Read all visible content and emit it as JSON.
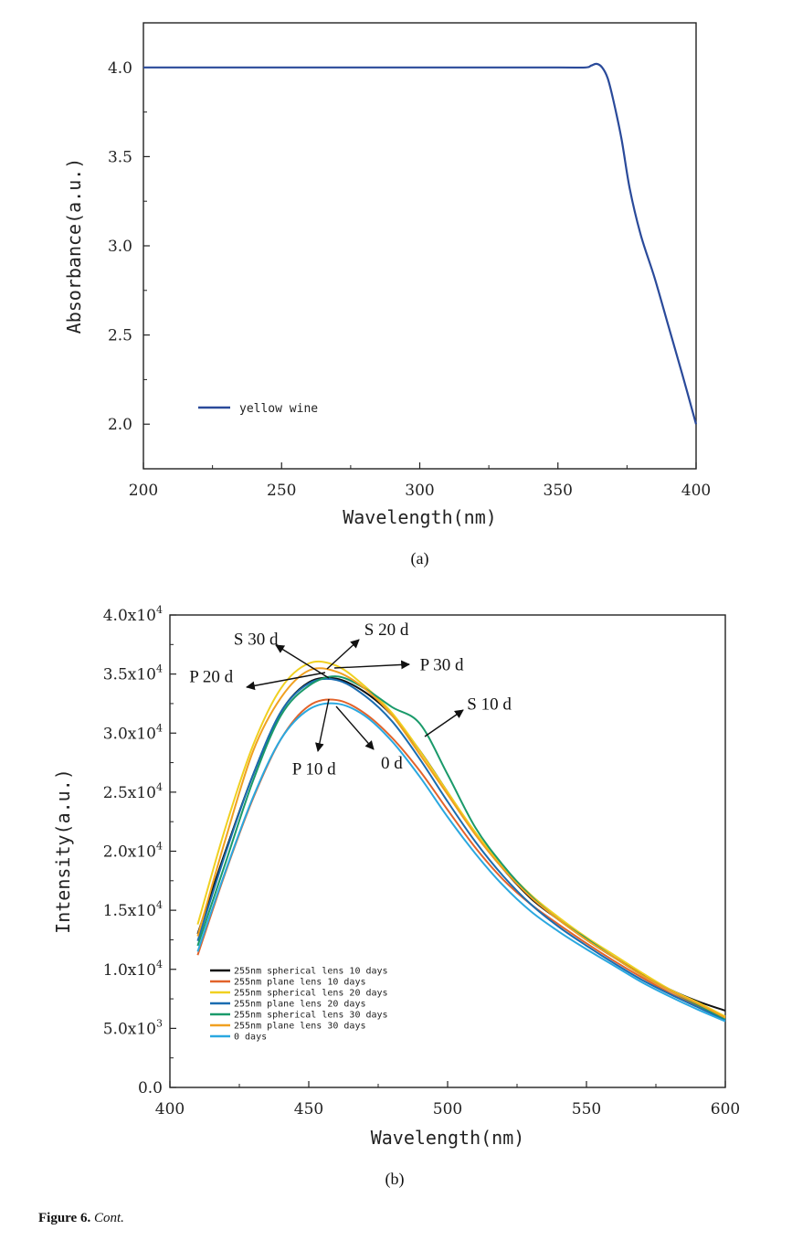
{
  "chart_data": [
    {
      "type": "line",
      "panel_label": "(a)",
      "xlabel": "Wavelength(nm)",
      "ylabel": "Absorbance(a.u.)",
      "xlim": [
        200,
        400
      ],
      "ylim": [
        1.75,
        4.25
      ],
      "xticks": [
        200,
        250,
        300,
        350,
        400
      ],
      "yticks": [
        2.0,
        2.5,
        3.0,
        3.5,
        4.0
      ],
      "ytick_labels": [
        "2.0",
        "2.5",
        "3.0",
        "3.5",
        "4.0"
      ],
      "legend_position": "bottom-left",
      "series": [
        {
          "name": "yellow wine",
          "color": "#2a4a9a",
          "x": [
            200,
            250,
            300,
            350,
            360,
            362,
            364,
            366,
            368,
            370,
            373,
            376,
            380,
            385,
            390,
            395,
            400
          ],
          "y": [
            4.0,
            4.0,
            4.0,
            4.0,
            4.0,
            4.01,
            4.02,
            4.0,
            3.94,
            3.82,
            3.6,
            3.32,
            3.06,
            2.82,
            2.55,
            2.28,
            2.0
          ]
        }
      ]
    },
    {
      "type": "line",
      "panel_label": "(b)",
      "xlabel": "Wavelength(nm)",
      "ylabel": "Intensity(a.u.)",
      "xlim": [
        400,
        600
      ],
      "ylim": [
        0,
        40000
      ],
      "xticks": [
        400,
        450,
        500,
        550,
        600
      ],
      "yticks": [
        0,
        5000,
        10000,
        15000,
        20000,
        25000,
        30000,
        35000,
        40000
      ],
      "ytick_labels": [
        {
          "main": "0.0",
          "sup": ""
        },
        {
          "main": "5.0x10",
          "sup": "3"
        },
        {
          "main": "1.0x10",
          "sup": "4"
        },
        {
          "main": "1.5x10",
          "sup": "4"
        },
        {
          "main": "2.0x10",
          "sup": "4"
        },
        {
          "main": "2.5x10",
          "sup": "4"
        },
        {
          "main": "3.0x10",
          "sup": "4"
        },
        {
          "main": "3.5x10",
          "sup": "4"
        },
        {
          "main": "4.0x10",
          "sup": "4"
        }
      ],
      "legend_position": "bottom-left",
      "x": [
        410,
        420,
        430,
        440,
        450,
        460,
        470,
        480,
        490,
        500,
        510,
        520,
        530,
        540,
        550,
        560,
        570,
        580,
        590,
        600
      ],
      "series": [
        {
          "name": "255nm spherical lens 10 days",
          "color": "#111111",
          "values": [
            13000,
            20000,
            26500,
            31800,
            34300,
            34600,
            33500,
            31500,
            28500,
            25000,
            21500,
            18500,
            16000,
            14200,
            12500,
            11000,
            9600,
            8300,
            7300,
            6500
          ]
        },
        {
          "name": "255nm plane lens 10 days",
          "color": "#e2632b",
          "values": [
            11200,
            18200,
            24500,
            29500,
            32300,
            32800,
            31700,
            29600,
            26800,
            23500,
            20300,
            17600,
            15500,
            13800,
            12200,
            10700,
            9300,
            8000,
            6900,
            5900
          ]
        },
        {
          "name": "255nm spherical lens 20 days",
          "color": "#f0d020",
          "values": [
            13800,
            22000,
            29000,
            33800,
            35900,
            35700,
            34000,
            31700,
            28500,
            25000,
            21600,
            18700,
            16300,
            14400,
            12700,
            11200,
            9700,
            8300,
            7200,
            6000
          ]
        },
        {
          "name": "255nm plane lens 20 days",
          "color": "#1a6cb0",
          "values": [
            12400,
            19800,
            26500,
            31800,
            34200,
            34500,
            33200,
            31000,
            27800,
            24200,
            20800,
            17900,
            15500,
            13600,
            12000,
            10500,
            9100,
            7900,
            6800,
            5700
          ]
        },
        {
          "name": "255nm spherical lens 30 days",
          "color": "#1a9a6a",
          "values": [
            12000,
            19000,
            26000,
            31500,
            34000,
            34800,
            33800,
            32200,
            30800,
            26500,
            22000,
            18800,
            16200,
            14200,
            12600,
            11000,
            9500,
            8200,
            7000,
            5800
          ]
        },
        {
          "name": "255nm plane lens 30 days",
          "color": "#f0a020",
          "values": [
            12800,
            21000,
            28500,
            33000,
            35300,
            35200,
            33800,
            31500,
            28200,
            24800,
            21400,
            18500,
            16100,
            14200,
            12500,
            11000,
            9500,
            8200,
            7100,
            5900
          ]
        },
        {
          "name": "0 days",
          "color": "#2aa8e0",
          "values": [
            11500,
            18300,
            24600,
            29500,
            32000,
            32500,
            31500,
            29300,
            26300,
            22900,
            19800,
            17100,
            14900,
            13200,
            11700,
            10300,
            8900,
            7700,
            6600,
            5600
          ]
        }
      ],
      "annotations": [
        {
          "text": "S 30 d",
          "x": 423,
          "y": 37500
        },
        {
          "text": "S 20 d",
          "x": 470,
          "y": 38300
        },
        {
          "text": "P 30 d",
          "x": 490,
          "y": 35300
        },
        {
          "text": "P 20 d",
          "x": 407,
          "y": 34300
        },
        {
          "text": "S 10 d",
          "x": 507,
          "y": 32000
        },
        {
          "text": "P 10 d",
          "x": 444,
          "y": 26500
        },
        {
          "text": "0 d",
          "x": 476,
          "y": 27000
        }
      ]
    }
  ],
  "caption": {
    "label": "Figure 6.",
    "text": "Cont."
  }
}
